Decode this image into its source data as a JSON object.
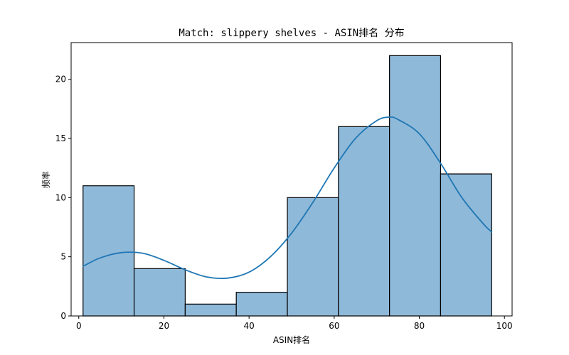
{
  "chart_data": {
    "type": "bar",
    "title": "Match: slippery shelves - ASIN排名 分布",
    "xlabel": "ASIN排名",
    "ylabel": "频率",
    "xlim": [
      -1.8,
      101.8
    ],
    "ylim": [
      0,
      23.1
    ],
    "xticks": [
      0,
      20,
      40,
      60,
      80,
      100
    ],
    "yticks": [
      0,
      5,
      10,
      15,
      20
    ],
    "bins": [
      {
        "start": 1,
        "end": 13,
        "count": 11
      },
      {
        "start": 13,
        "end": 25,
        "count": 4
      },
      {
        "start": 25,
        "end": 37,
        "count": 1
      },
      {
        "start": 37,
        "end": 49,
        "count": 2
      },
      {
        "start": 49,
        "end": 61,
        "count": 10
      },
      {
        "start": 61,
        "end": 73,
        "count": 16
      },
      {
        "start": 73,
        "end": 85,
        "count": 22
      },
      {
        "start": 85,
        "end": 97,
        "count": 12
      }
    ],
    "kde": {
      "x": [
        1,
        5,
        10,
        15,
        20,
        25,
        30,
        35,
        40,
        45,
        50,
        55,
        60,
        65,
        70,
        73,
        75,
        80,
        85,
        90,
        95,
        97
      ],
      "y": [
        4.2,
        4.9,
        5.35,
        5.3,
        4.7,
        3.9,
        3.3,
        3.2,
        3.7,
        5.0,
        7.0,
        9.6,
        12.5,
        15.0,
        16.5,
        16.8,
        16.6,
        15.4,
        12.9,
        10.0,
        7.8,
        7.1
      ]
    },
    "bar_fill": "#8fb9d9",
    "bar_edge": "#000000",
    "kde_color": "#1f77b4",
    "grid": false
  }
}
